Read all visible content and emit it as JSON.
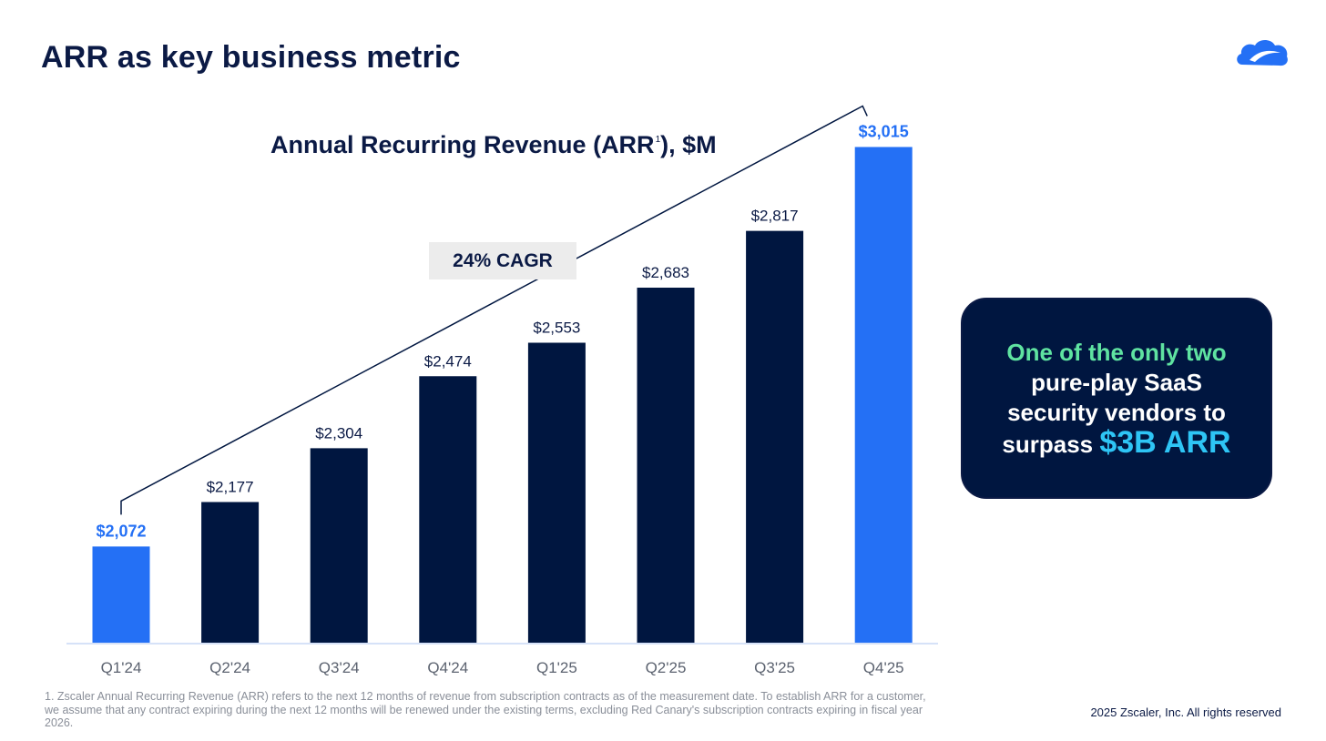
{
  "header": {
    "title": "ARR as key business metric"
  },
  "chart_data": {
    "type": "bar",
    "title": "Annual Recurring Revenue (ARR",
    "title_superscript": "1",
    "title_suffix": "), $M",
    "categories": [
      "Q1'24",
      "Q2'24",
      "Q3'24",
      "Q4'24",
      "Q1'25",
      "Q2'25",
      "Q3'25",
      "Q4'25"
    ],
    "values": [
      2072,
      2177,
      2304,
      2474,
      2553,
      2683,
      2817,
      3015
    ],
    "labels": [
      "$2,072",
      "$2,177",
      "$2,304",
      "$2,474",
      "$2,553",
      "$2,683",
      "$2,817",
      "$3,015"
    ],
    "highlighted": [
      true,
      false,
      false,
      false,
      false,
      false,
      false,
      true
    ],
    "xlabel": "",
    "ylabel": "",
    "grid": false,
    "annotation": "24% CAGR"
  },
  "colors": {
    "navy": "#001640",
    "highlight": "#2470f5",
    "axis": "#c9d9f5",
    "text_dark": "#0b1a45",
    "tick": "#5c6370"
  },
  "callout": {
    "line1": "One of the only two",
    "line2": "pure-play SaaS",
    "line3": "security vendors to",
    "line4_prefix": "surpass ",
    "line4_highlight": "$3B ARR"
  },
  "footnote": "1. Zscaler Annual Recurring Revenue (ARR) refers to the next 12 months of revenue from subscription contracts as of the measurement date. To establish ARR for a customer, we assume that any contract expiring during the next 12 months will be renewed under the existing terms, excluding Red Canary's subscription contracts expiring in fiscal year 2026.",
  "copyright": "2025 Zscaler, Inc. All rights reserved",
  "logo": {
    "icon": "zscaler-cloud-logo"
  }
}
